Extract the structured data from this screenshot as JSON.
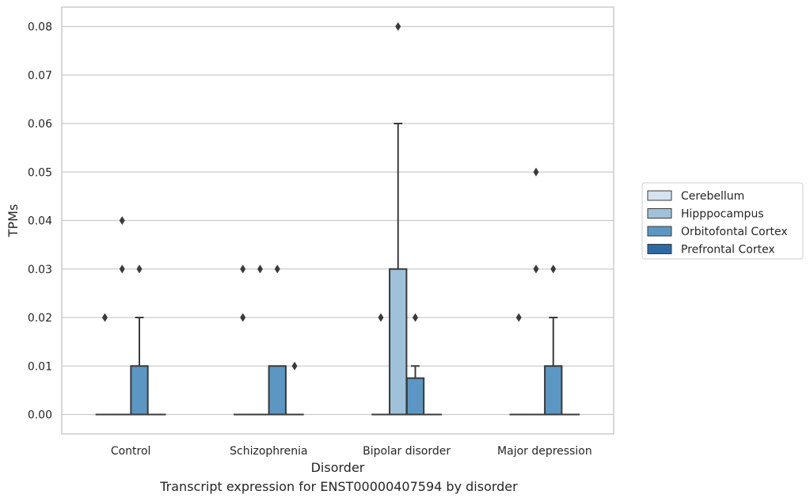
{
  "caption": "Transcript expression for ENST00000407594 by disorder",
  "chart_data": {
    "type": "box",
    "xlabel": "Disorder",
    "ylabel": "TPMs",
    "categories": [
      "Control",
      "Schizophrenia",
      "Bipolar disorder",
      "Major depression"
    ],
    "ylim": [
      -0.004,
      0.084
    ],
    "yticks": [
      0,
      0.01,
      0.02,
      0.03,
      0.04,
      0.05,
      0.06,
      0.07,
      0.08
    ],
    "ytick_labels": [
      "0.00",
      "0.01",
      "0.02",
      "0.03",
      "0.04",
      "0.05",
      "0.06",
      "0.07",
      "0.08"
    ],
    "grid": "horizontal",
    "legend_position": "right",
    "series": [
      {
        "name": "Cerebellum",
        "color": "#d6e2ef",
        "boxes": [
          {
            "q1": 0,
            "median": 0,
            "q3": 0,
            "whisker_low": 0,
            "whisker_high": 0,
            "outliers": [
              0.02
            ]
          },
          {
            "q1": 0,
            "median": 0,
            "q3": 0,
            "whisker_low": 0,
            "whisker_high": 0,
            "outliers": [
              0.02,
              0.03
            ]
          },
          {
            "q1": 0,
            "median": 0,
            "q3": 0,
            "whisker_low": 0,
            "whisker_high": 0,
            "outliers": [
              0.02
            ]
          },
          {
            "q1": 0,
            "median": 0,
            "q3": 0,
            "whisker_low": 0,
            "whisker_high": 0,
            "outliers": [
              0.02
            ]
          }
        ]
      },
      {
        "name": "Hipppocampus",
        "color": "#9fc2da",
        "boxes": [
          {
            "q1": 0,
            "median": 0,
            "q3": 0,
            "whisker_low": 0,
            "whisker_high": 0,
            "outliers": [
              0.03,
              0.04
            ]
          },
          {
            "q1": 0,
            "median": 0,
            "q3": 0,
            "whisker_low": 0,
            "whisker_high": 0,
            "outliers": [
              0.03
            ]
          },
          {
            "q1": 0,
            "median": 0,
            "q3": 0.03,
            "whisker_low": 0,
            "whisker_high": 0.06,
            "outliers": [
              0.08
            ]
          },
          {
            "q1": 0,
            "median": 0,
            "q3": 0,
            "whisker_low": 0,
            "whisker_high": 0,
            "outliers": [
              0.03,
              0.05
            ]
          }
        ]
      },
      {
        "name": "Orbitofontal Cortex",
        "color": "#5b97c2",
        "boxes": [
          {
            "q1": 0,
            "median": 0,
            "q3": 0.01,
            "whisker_low": 0,
            "whisker_high": 0.02,
            "outliers": [
              0.03
            ]
          },
          {
            "q1": 0,
            "median": 0,
            "q3": 0.01,
            "whisker_low": 0,
            "whisker_high": 0.01,
            "outliers": [
              0.03
            ]
          },
          {
            "q1": 0,
            "median": 0,
            "q3": 0.0075,
            "whisker_low": 0,
            "whisker_high": 0.01,
            "outliers": [
              0.02
            ]
          },
          {
            "q1": 0,
            "median": 0,
            "q3": 0.01,
            "whisker_low": 0,
            "whisker_high": 0.02,
            "outliers": [
              0.03
            ]
          }
        ]
      },
      {
        "name": "Prefrontal Cortex",
        "color": "#2c6aa5",
        "boxes": [
          {
            "q1": 0,
            "median": 0,
            "q3": 0,
            "whisker_low": 0,
            "whisker_high": 0,
            "outliers": []
          },
          {
            "q1": 0,
            "median": 0,
            "q3": 0,
            "whisker_low": 0,
            "whisker_high": 0,
            "outliers": [
              0.01
            ]
          },
          {
            "q1": 0,
            "median": 0,
            "q3": 0,
            "whisker_low": 0,
            "whisker_high": 0,
            "outliers": []
          },
          {
            "q1": 0,
            "median": 0,
            "q3": 0,
            "whisker_low": 0,
            "whisker_high": 0,
            "outliers": []
          }
        ]
      }
    ]
  }
}
